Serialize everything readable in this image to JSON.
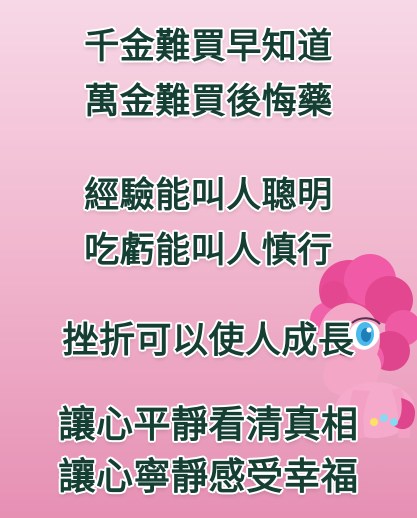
{
  "poster": {
    "lines": [
      "千金難買早知道",
      "萬金難買後悔藥",
      "經驗能叫人聰明",
      "吃虧能叫人慎行",
      "挫折可以使人成長",
      "讓心平靜看清真相",
      "讓心寧靜感受幸福"
    ],
    "text_color": "#163f33",
    "outline_color": "#ffffff",
    "background_color_top": "#f7d8e6",
    "background_color_bottom": "#e690b4",
    "character_name": "pinkie-pie"
  }
}
